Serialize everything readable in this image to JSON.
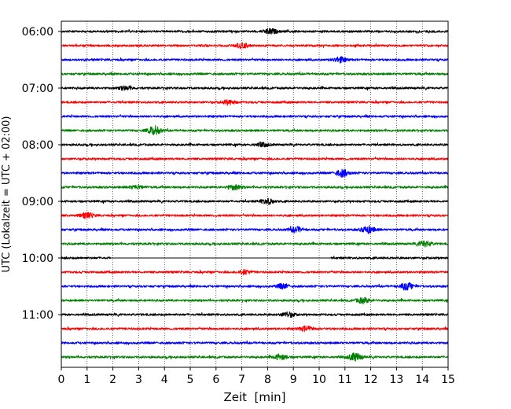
{
  "chart_data": {
    "type": "line",
    "title": "",
    "xlabel": "Zeit  [min]",
    "ylabel": "UTC (Lokalzeit = UTC + 02:00)",
    "xlim": [
      0,
      15
    ],
    "x_ticks": [
      "0",
      "1",
      "2",
      "3",
      "4",
      "5",
      "6",
      "7",
      "8",
      "9",
      "10",
      "11",
      "12",
      "13",
      "14",
      "15"
    ],
    "y_ticks": [
      "06:00",
      "07:00",
      "08:00",
      "09:00",
      "10:00",
      "11:00"
    ],
    "grid": "vertical dotted",
    "trace_interval_min": 15,
    "first_trace": "06:00",
    "trace_count": 24,
    "series_colors": [
      "#000000",
      "#ff0000",
      "#0000ff",
      "#008000"
    ],
    "gap": {
      "trace": 16,
      "start_min": 1.9,
      "end_min": 10.45
    },
    "events": [
      {
        "trace": 0,
        "minute": 8.1,
        "amp": 0.9
      },
      {
        "trace": 1,
        "minute": 7.0,
        "amp": 0.8
      },
      {
        "trace": 2,
        "minute": 10.8,
        "amp": 0.9
      },
      {
        "trace": 4,
        "minute": 2.5,
        "amp": 0.6
      },
      {
        "trace": 5,
        "minute": 6.5,
        "amp": 0.7
      },
      {
        "trace": 7,
        "minute": 3.6,
        "amp": 1.4
      },
      {
        "trace": 8,
        "minute": 7.8,
        "amp": 0.6
      },
      {
        "trace": 10,
        "minute": 10.9,
        "amp": 1.2
      },
      {
        "trace": 11,
        "minute": 6.7,
        "amp": 0.8
      },
      {
        "trace": 11,
        "minute": 2.9,
        "amp": 0.6
      },
      {
        "trace": 12,
        "minute": 8.0,
        "amp": 0.9
      },
      {
        "trace": 13,
        "minute": 1.0,
        "amp": 0.9
      },
      {
        "trace": 14,
        "minute": 11.9,
        "amp": 1.2
      },
      {
        "trace": 14,
        "minute": 9.1,
        "amp": 0.9
      },
      {
        "trace": 15,
        "minute": 14.1,
        "amp": 1.0
      },
      {
        "trace": 17,
        "minute": 7.1,
        "amp": 0.7
      },
      {
        "trace": 18,
        "minute": 13.4,
        "amp": 1.3
      },
      {
        "trace": 18,
        "minute": 8.6,
        "amp": 0.8
      },
      {
        "trace": 19,
        "minute": 11.7,
        "amp": 0.9
      },
      {
        "trace": 20,
        "minute": 8.8,
        "amp": 0.8
      },
      {
        "trace": 21,
        "minute": 9.5,
        "amp": 0.8
      },
      {
        "trace": 23,
        "minute": 11.4,
        "amp": 1.3
      },
      {
        "trace": 23,
        "minute": 8.5,
        "amp": 0.9
      }
    ]
  }
}
